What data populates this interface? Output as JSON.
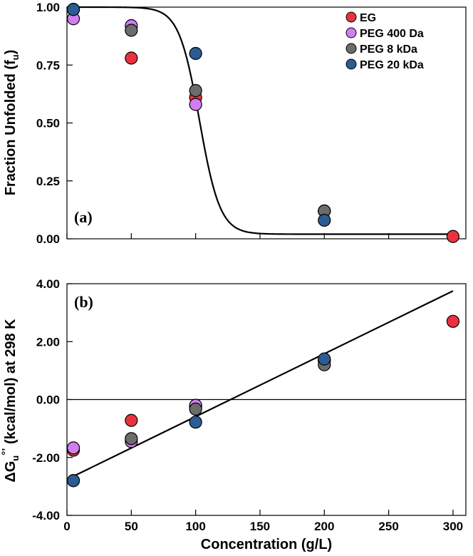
{
  "chart_data": [
    {
      "type": "scatter",
      "panel_label": "(a)",
      "ylabel": "Fraction Unfolded (f",
      "ylabel_sub": "u",
      "ylabel_end": ")",
      "xlabel": "",
      "xlim": [
        0,
        310
      ],
      "ylim": [
        0,
        1.0
      ],
      "y_ticks": [
        "0.00",
        "0.25",
        "0.50",
        "0.75",
        "1.00"
      ],
      "y_tick_values": [
        0,
        0.25,
        0.5,
        0.75,
        1.0
      ],
      "x_tick_values": [
        0,
        50,
        100,
        150,
        200,
        250,
        300
      ],
      "legend_position": "top-right",
      "series": [
        {
          "name": "EG",
          "color": "#e8333f",
          "x": [
            5,
            50,
            100,
            200,
            300
          ],
          "y": [
            0.99,
            0.78,
            0.61,
            0.12,
            0.01
          ]
        },
        {
          "name": "PEG 400 Da",
          "color": "#d07ef0",
          "x": [
            5,
            50,
            100,
            200
          ],
          "y": [
            0.95,
            0.92,
            0.58,
            0.12
          ]
        },
        {
          "name": "PEG 8 kDa",
          "color": "#6c6c6c",
          "x": [
            5,
            50,
            100,
            200
          ],
          "y": [
            0.99,
            0.9,
            0.64,
            0.12
          ]
        },
        {
          "name": "PEG 20 kDa",
          "color": "#2c5c93",
          "x": [
            5,
            100,
            200
          ],
          "y": [
            0.99,
            0.8,
            0.08
          ]
        }
      ],
      "fit_curve": {
        "type": "sigmoid",
        "top": 1.0,
        "bottom": 0.02,
        "midpoint": 103,
        "slope": 8
      }
    },
    {
      "type": "scatter",
      "panel_label": "(b)",
      "ylabel": "ΔG",
      "ylabel_sub": "u",
      "ylabel_sup": "°’",
      "ylabel_end": " (kcal/mol) at 298 K",
      "xlabel": "Concentration (g/L)",
      "xlim": [
        0,
        310
      ],
      "ylim": [
        -4.0,
        4.0
      ],
      "y_ticks": [
        "-4.00",
        "-2.00",
        "0.00",
        "2.00",
        "4.00"
      ],
      "y_tick_values": [
        -4,
        -2,
        0,
        2,
        4
      ],
      "x_ticks": [
        "0",
        "50",
        "100",
        "150",
        "200",
        "250",
        "300"
      ],
      "x_tick_values": [
        0,
        50,
        100,
        150,
        200,
        250,
        300
      ],
      "zero_line": true,
      "series": [
        {
          "name": "EG",
          "color": "#e8333f",
          "x": [
            5,
            50,
            100,
            200,
            300
          ],
          "y": [
            -1.75,
            -0.72,
            -0.25,
            1.35,
            2.7
          ]
        },
        {
          "name": "PEG 400 Da",
          "color": "#d07ef0",
          "x": [
            5,
            50,
            100,
            200
          ],
          "y": [
            -1.67,
            -1.45,
            -0.2,
            1.35
          ]
        },
        {
          "name": "PEG 8 kDa",
          "color": "#6c6c6c",
          "x": [
            5,
            50,
            100,
            200
          ],
          "y": [
            -2.8,
            -1.35,
            -0.33,
            1.2
          ]
        },
        {
          "name": "PEG 20 kDa",
          "color": "#2c5c93",
          "x": [
            5,
            100,
            200
          ],
          "y": [
            -2.8,
            -0.78,
            1.4
          ]
        }
      ],
      "fit_line": {
        "x": [
          5,
          300
        ],
        "y": [
          -2.65,
          3.75
        ]
      }
    }
  ]
}
